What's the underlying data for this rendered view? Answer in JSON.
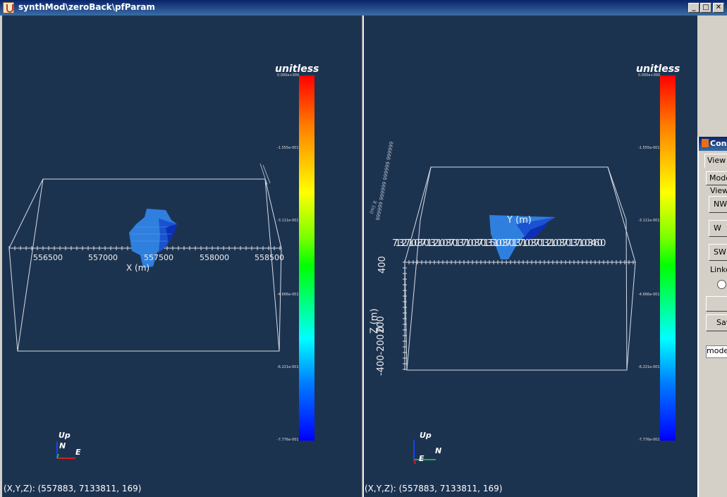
{
  "window": {
    "title": "synthMod\\zeroBack\\pfParam"
  },
  "left_view": {
    "unit_label": "unitless",
    "colorbar_ticks": [
      "0.000e+000",
      "-1.555e-001",
      "-3.111e-001",
      "-4.666e-001",
      "-6.221e-001",
      "-7.776e-001"
    ],
    "x_ticks": [
      "556500",
      "557000",
      "557500",
      "558000",
      "558500"
    ],
    "x_axis_label": "X (m)",
    "orientation": {
      "up": "Up",
      "north": "N",
      "east": "E"
    },
    "status": "(X,Y,Z): (557883, 7133811,    169)"
  },
  "right_view": {
    "unit_label": "unitless",
    "colorbar_ticks": [
      "0.000e+000",
      "-1.555e-001",
      "-3.111e-001",
      "-4.666e-001",
      "-6.221e-001",
      "-7.776e-001"
    ],
    "y_axis_label": "Y (m)",
    "y_ticks_overlap": "7132710037013210037013710037013510037013710037013210037013710034600",
    "z_axis_label": "Z (m)",
    "z_ticks": [
      "400",
      "200",
      "0",
      "-400-200"
    ],
    "orientation": {
      "up": "Up",
      "north": "N",
      "east": "E"
    },
    "status": "(X,Y,Z): (557883, 7133811,    169)"
  },
  "control_window": {
    "title": "Con",
    "tab": "View",
    "mode_button": "Mode",
    "group_view": "View",
    "buttons": [
      "NW",
      "W",
      "SW"
    ],
    "group_linked": "Linke",
    "save_button": "Sav",
    "model_field": "modelo"
  },
  "colors": {
    "background": "#1c3350",
    "frame": "#d4d0c8",
    "title_bar": "#0a246a",
    "body_light": "#2e7fe0",
    "body_dark": "#1540c8"
  }
}
